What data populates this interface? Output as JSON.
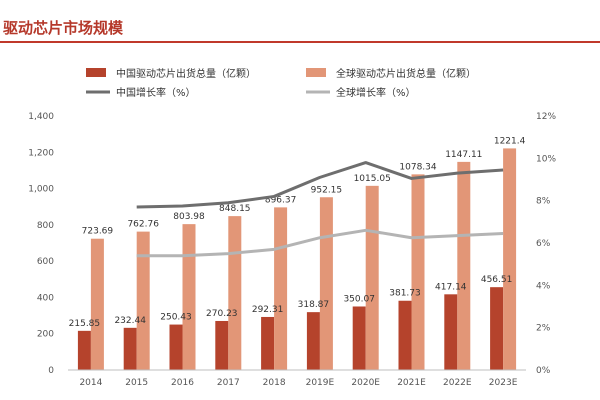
{
  "page": {
    "title": "驱动芯片市场规模"
  },
  "colors": {
    "title": "#b5382a",
    "rule": "#c0392b",
    "china_bar": "#b5432c",
    "global_bar": "#e29677",
    "china_line": "#6e6e6e",
    "global_line": "#b4b4b4"
  },
  "chart_data": {
    "type": "bar",
    "title": "驱动芯片市场规模",
    "categories": [
      "2014",
      "2015",
      "2016",
      "2017",
      "2018",
      "2019E",
      "2020E",
      "2021E",
      "2022E",
      "2023E"
    ],
    "series": [
      {
        "name": "中国驱动芯片出货总量（亿颗）",
        "kind": "bar",
        "axis": "left",
        "values": [
          215.85,
          232.44,
          250.43,
          270.23,
          292.31,
          318.87,
          350.07,
          381.73,
          417.14,
          456.51
        ],
        "labels": [
          "215.85",
          "232.44",
          "250.43",
          "270.23",
          "292.31",
          "318.87",
          "350.07",
          "381.73",
          "417.14",
          "456.51"
        ]
      },
      {
        "name": "全球驱动芯片出货总量（亿颗）",
        "kind": "bar",
        "axis": "left",
        "values": [
          723.69,
          762.76,
          803.98,
          848.15,
          896.37,
          952.15,
          1015.05,
          1078.34,
          1147.11,
          1221.4
        ],
        "labels": [
          "723.69",
          "762.76",
          "803.98",
          "848.15",
          "896.37",
          "952.15",
          "1015.05",
          "1078.34",
          "1147.11",
          "1221.4"
        ]
      },
      {
        "name": "中国增长率（%）",
        "kind": "line",
        "axis": "right",
        "values": [
          null,
          7.7,
          7.75,
          7.9,
          8.2,
          9.1,
          9.8,
          9.05,
          9.3,
          9.45
        ]
      },
      {
        "name": "全球增长率（%）",
        "kind": "line",
        "axis": "right",
        "values": [
          null,
          5.4,
          5.4,
          5.5,
          5.7,
          6.25,
          6.6,
          6.25,
          6.35,
          6.45
        ]
      }
    ],
    "y_left": {
      "min": 0,
      "max": 1400,
      "ticks": [
        0,
        200,
        400,
        600,
        800,
        1000,
        1200,
        1400
      ],
      "tick_labels": [
        "0",
        "200",
        "400",
        "600",
        "800",
        "1,000",
        "1,200",
        "1,400"
      ]
    },
    "y_right": {
      "min": 0,
      "max": 12,
      "ticks": [
        0,
        2,
        4,
        6,
        8,
        10,
        12
      ],
      "tick_labels": [
        "0%",
        "2%",
        "4%",
        "6%",
        "8%",
        "10%",
        "12%"
      ]
    },
    "legend": {
      "position": "top",
      "items": [
        "中国驱动芯片出货总量（亿颗）",
        "全球驱动芯片出货总量（亿颗）",
        "中国增长率（%）",
        "全球增长率（%）"
      ]
    },
    "grid": false,
    "xlabel": "",
    "ylabel": ""
  }
}
